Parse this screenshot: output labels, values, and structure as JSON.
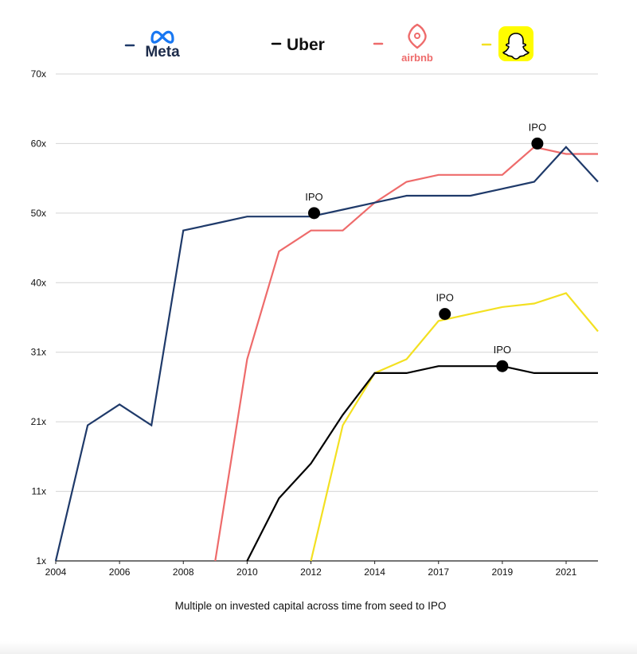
{
  "chart_data": {
    "type": "line",
    "caption": "Multiple on invested capital across time from seed to IPO",
    "x_ticks": [
      "2004",
      "2006",
      "2008",
      "2010",
      "2012",
      "2014",
      "2017",
      "2019",
      "2021"
    ],
    "y_ticks": [
      "1x",
      "11x",
      "21x",
      "31x",
      "40x",
      "50x",
      "60x",
      "70x"
    ],
    "grid": true,
    "legend_position": "top",
    "series": [
      {
        "name": "Meta",
        "legend_icon": "meta-logo",
        "color": "#1f3a6a",
        "points": [
          [
            0,
            0
          ],
          [
            1,
            19.5
          ],
          [
            2,
            22.5
          ],
          [
            3,
            19.5
          ],
          [
            4,
            47.5
          ],
          [
            5,
            48.5
          ],
          [
            6,
            49.5
          ],
          [
            7,
            49.5
          ],
          [
            8,
            49.5
          ],
          [
            9,
            50.5
          ],
          [
            10,
            51.5
          ],
          [
            11,
            52.5
          ],
          [
            12,
            52.5
          ],
          [
            13,
            52.5
          ],
          [
            14,
            53.5
          ],
          [
            15,
            54.5
          ],
          [
            16,
            59.5
          ],
          [
            17,
            54.5
          ]
        ]
      },
      {
        "name": "Uber",
        "legend_icon": "uber-wordmark",
        "color": "#000000",
        "points": [
          [
            6,
            0
          ],
          [
            7,
            9
          ],
          [
            8,
            14
          ],
          [
            9,
            21
          ],
          [
            10,
            27
          ],
          [
            11,
            27
          ],
          [
            12,
            28
          ],
          [
            13,
            28
          ],
          [
            14,
            28
          ],
          [
            15,
            27
          ],
          [
            16,
            27
          ],
          [
            17,
            27
          ]
        ]
      },
      {
        "name": "airbnb",
        "legend_icon": "airbnb-logo",
        "color": "#ee6b6b",
        "points": [
          [
            5,
            0
          ],
          [
            6,
            29
          ],
          [
            7,
            44.5
          ],
          [
            8,
            47.5
          ],
          [
            9,
            47.5
          ],
          [
            10,
            51.5
          ],
          [
            11,
            54.5
          ],
          [
            12,
            55.5
          ],
          [
            13,
            55.5
          ],
          [
            14,
            55.5
          ],
          [
            15,
            59.5
          ],
          [
            16,
            58.5
          ],
          [
            17,
            58.5
          ]
        ]
      },
      {
        "name": "Snapchat",
        "legend_icon": "snapchat-ghost-logo",
        "color": "#f3e021",
        "points": [
          [
            8,
            0
          ],
          [
            9,
            19.5
          ],
          [
            10,
            27
          ],
          [
            11,
            29
          ],
          [
            12,
            34.5
          ],
          [
            13,
            35.5
          ],
          [
            14,
            36.5
          ],
          [
            15,
            37
          ],
          [
            16,
            38.5
          ],
          [
            17,
            33
          ]
        ]
      }
    ],
    "ipo_markers": [
      {
        "label": "IPO",
        "series": "Meta",
        "x": 8.1,
        "y": 50
      },
      {
        "label": "IPO",
        "series": "airbnb",
        "x": 15.1,
        "y": 60
      },
      {
        "label": "IPO",
        "series": "Snapchat",
        "x": 12.2,
        "y": 35.5
      },
      {
        "label": "IPO",
        "series": "Uber",
        "x": 14,
        "y": 28
      }
    ]
  },
  "legend": {
    "uber_text": "Uber",
    "meta_text": "Meta",
    "airbnb_text": "airbnb"
  }
}
